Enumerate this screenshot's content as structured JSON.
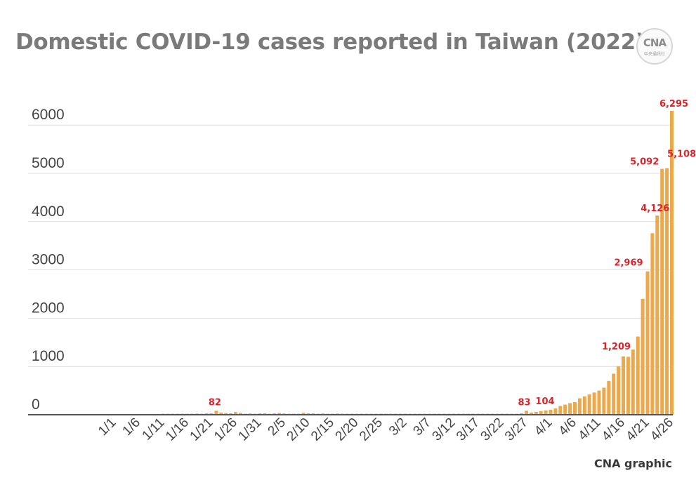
{
  "title": "Domestic COVID-19 cases reported in Taiwan (2022)",
  "logo": {
    "mark": "CNA",
    "sub": "中央通訊社"
  },
  "credit": "CNA graphic",
  "colors": {
    "bar": "#eca84b",
    "label": "#d9242a",
    "axis": "#555555",
    "grid": "#dddddd",
    "tick": "#444444"
  },
  "chart_data": {
    "type": "bar",
    "title": "Domestic COVID-19 cases reported in Taiwan (2022)",
    "xlabel": "",
    "ylabel": "",
    "ylim": [
      0,
      6300
    ],
    "yticks": [
      0,
      1000,
      2000,
      3000,
      4000,
      5000,
      6000
    ],
    "grid": true,
    "x_tick_labels": [
      "1/1",
      "1/6",
      "1/11",
      "1/16",
      "1/21",
      "1/26",
      "1/31",
      "2/5",
      "2/10",
      "2/15",
      "2/20",
      "2/25",
      "3/2",
      "3/7",
      "3/12",
      "3/17",
      "3/22",
      "3/27",
      "4/1",
      "4/6",
      "4/11",
      "4/16",
      "4/21",
      "4/26"
    ],
    "categories": [
      "1/1",
      "1/2",
      "1/3",
      "1/4",
      "1/5",
      "1/6",
      "1/7",
      "1/8",
      "1/9",
      "1/10",
      "1/11",
      "1/12",
      "1/13",
      "1/14",
      "1/15",
      "1/16",
      "1/17",
      "1/18",
      "1/19",
      "1/20",
      "1/21",
      "1/22",
      "1/23",
      "1/24",
      "1/25",
      "1/26",
      "1/27",
      "1/28",
      "1/29",
      "1/30",
      "1/31",
      "2/1",
      "2/2",
      "2/3",
      "2/4",
      "2/5",
      "2/6",
      "2/7",
      "2/8",
      "2/9",
      "2/10",
      "2/11",
      "2/12",
      "2/13",
      "2/14",
      "2/15",
      "2/16",
      "2/17",
      "2/18",
      "2/19",
      "2/20",
      "2/21",
      "2/22",
      "2/23",
      "2/24",
      "2/25",
      "2/26",
      "2/27",
      "2/28",
      "3/1",
      "3/2",
      "3/3",
      "3/4",
      "3/5",
      "3/6",
      "3/7",
      "3/8",
      "3/9",
      "3/10",
      "3/11",
      "3/12",
      "3/13",
      "3/14",
      "3/15",
      "3/16",
      "3/17",
      "3/18",
      "3/19",
      "3/20",
      "3/21",
      "3/22",
      "3/23",
      "3/24",
      "3/25",
      "3/26",
      "3/27",
      "3/28",
      "3/29",
      "3/30",
      "3/31",
      "4/1",
      "4/2",
      "4/3",
      "4/4",
      "4/5",
      "4/6",
      "4/7",
      "4/8",
      "4/9",
      "4/10",
      "4/11",
      "4/12",
      "4/13",
      "4/14",
      "4/15",
      "4/16",
      "4/17",
      "4/18",
      "4/19",
      "4/20",
      "4/21",
      "4/22",
      "4/23",
      "4/24",
      "4/25",
      "4/26"
    ],
    "values": [
      0,
      0,
      0,
      0,
      0,
      0,
      0,
      0,
      0,
      0,
      15,
      5,
      18,
      10,
      20,
      15,
      10,
      25,
      20,
      28,
      30,
      82,
      45,
      35,
      30,
      55,
      38,
      22,
      25,
      20,
      28,
      30,
      22,
      28,
      35,
      25,
      20,
      15,
      22,
      40,
      30,
      28,
      20,
      25,
      12,
      18,
      25,
      20,
      15,
      8,
      5,
      5,
      5,
      5,
      5,
      20,
      5,
      5,
      5,
      2,
      5,
      2,
      2,
      2,
      2,
      5,
      2,
      2,
      2,
      2,
      2,
      2,
      2,
      2,
      2,
      2,
      2,
      2,
      2,
      2,
      5,
      8,
      10,
      15,
      30,
      83,
      45,
      60,
      75,
      90,
      104,
      130,
      180,
      210,
      240,
      260,
      340,
      380,
      420,
      460,
      500,
      560,
      700,
      850,
      1000,
      1209,
      1200,
      1350,
      1620,
      2400,
      2969,
      3760,
      4126,
      5092,
      5108,
      6295
    ],
    "data_labels": [
      {
        "x": "1/22",
        "text": "82"
      },
      {
        "x": "3/27",
        "text": "83"
      },
      {
        "x": "4/1",
        "text": "104"
      },
      {
        "x": "4/16",
        "text": "1,209"
      },
      {
        "x": "4/21",
        "text": "2,969"
      },
      {
        "x": "4/23",
        "text": "4,126"
      },
      {
        "x": "4/24",
        "text": "5,092"
      },
      {
        "x": "4/25",
        "text": "5,108"
      },
      {
        "x": "4/26",
        "text": "6,295"
      }
    ]
  }
}
